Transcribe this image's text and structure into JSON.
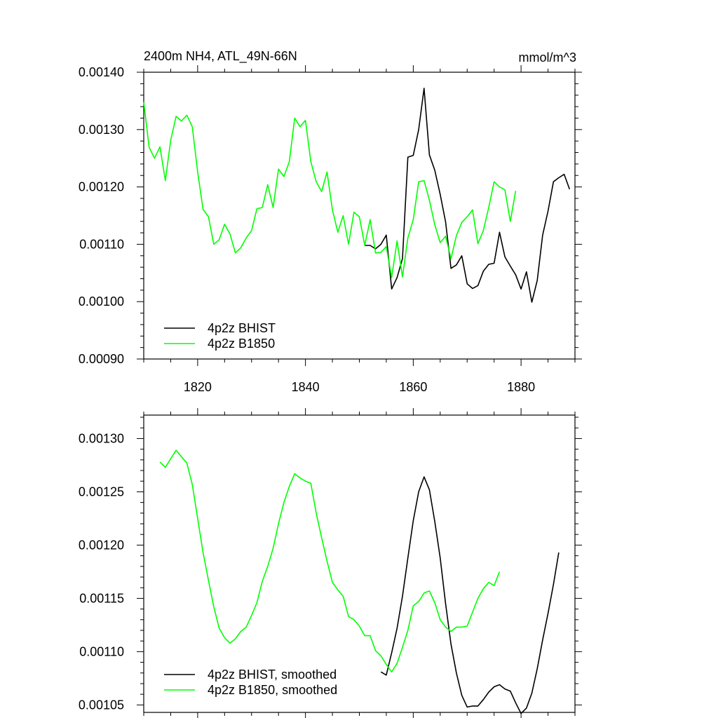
{
  "chart_data": [
    {
      "type": "line",
      "title": "2400m NH4, ATL_49N-66N",
      "units": "mmol/m^3",
      "xlim": [
        1810,
        1890
      ],
      "ylim": [
        0.0009,
        0.0014
      ],
      "xticks": [
        1820,
        1840,
        1860,
        1880
      ],
      "xtick_labels": [
        "1820",
        "1840",
        "1860",
        "1880"
      ],
      "yticks": [
        0.0009,
        0.001,
        0.0011,
        0.0012,
        0.0013,
        0.0014
      ],
      "ytick_labels": [
        "0.00090",
        "0.00100",
        "0.00110",
        "0.00120",
        "0.00130",
        "0.00140"
      ],
      "legend_position": "bottom-left",
      "grid": false,
      "series": [
        {
          "name": "4p2z BHIST",
          "color": "#000000",
          "x": [
            1851,
            1852,
            1853,
            1854,
            1855,
            1856,
            1857,
            1858,
            1859,
            1860,
            1861,
            1862,
            1863,
            1864,
            1865,
            1866,
            1867,
            1868,
            1869,
            1870,
            1871,
            1872,
            1873,
            1874,
            1875,
            1876,
            1877,
            1878,
            1879,
            1880,
            1881,
            1882,
            1883,
            1884,
            1885,
            1886,
            1887,
            1888,
            1889
          ],
          "y": [
            0.001098,
            0.001098,
            0.001092,
            0.0011,
            0.001116,
            0.001022,
            0.001042,
            0.001075,
            0.001252,
            0.001255,
            0.0013,
            0.001372,
            0.001256,
            0.001229,
            0.001187,
            0.001139,
            0.001058,
            0.001064,
            0.00108,
            0.001031,
            0.001023,
            0.001028,
            0.001053,
            0.001065,
            0.001067,
            0.001121,
            0.001078,
            0.001062,
            0.001047,
            0.001022,
            0.001052,
            0.000999,
            0.001037,
            0.001116,
            0.001158,
            0.001209,
            0.001216,
            0.001222,
            0.001196
          ]
        },
        {
          "name": "4p2z B1850",
          "color": "#00ff00",
          "x": [
            1810,
            1811,
            1812,
            1813,
            1814,
            1815,
            1816,
            1817,
            1818,
            1819,
            1820,
            1821,
            1822,
            1823,
            1824,
            1825,
            1826,
            1827,
            1828,
            1829,
            1830,
            1831,
            1832,
            1833,
            1834,
            1835,
            1836,
            1837,
            1838,
            1839,
            1840,
            1841,
            1842,
            1843,
            1844,
            1845,
            1846,
            1847,
            1848,
            1849,
            1850,
            1851,
            1852,
            1853,
            1854,
            1855,
            1856,
            1857,
            1858,
            1859,
            1860,
            1861,
            1862,
            1863,
            1864,
            1865,
            1866,
            1867,
            1868,
            1869,
            1870,
            1871,
            1872,
            1873,
            1874,
            1875,
            1876,
            1877,
            1878,
            1879
          ],
          "y": [
            0.001348,
            0.001269,
            0.00125,
            0.00127,
            0.001211,
            0.001281,
            0.001323,
            0.001315,
            0.001325,
            0.001305,
            0.001226,
            0.001161,
            0.001148,
            0.0011,
            0.001108,
            0.001135,
            0.001118,
            0.001085,
            0.001094,
            0.001111,
            0.001124,
            0.001162,
            0.001164,
            0.001204,
            0.001164,
            0.001231,
            0.001218,
            0.001244,
            0.00132,
            0.001305,
            0.001316,
            0.001244,
            0.001209,
            0.001192,
            0.001226,
            0.00116,
            0.001121,
            0.00115,
            0.0011,
            0.001156,
            0.001148,
            0.001098,
            0.001143,
            0.001085,
            0.001086,
            0.001096,
            0.001042,
            0.001106,
            0.001043,
            0.001111,
            0.001143,
            0.001209,
            0.001211,
            0.001177,
            0.001134,
            0.001103,
            0.001114,
            0.001075,
            0.001115,
            0.001138,
            0.001148,
            0.00116,
            0.001101,
            0.001124,
            0.001164,
            0.001209,
            0.0012,
            0.001195,
            0.00114,
            0.001193
          ]
        }
      ]
    },
    {
      "type": "line",
      "xlim": [
        1810,
        1890
      ],
      "ylim": [
        0.001043,
        0.001322
      ],
      "xticks": [
        1820,
        1840,
        1860,
        1880
      ],
      "yticks": [
        0.00105,
        0.0011,
        0.00115,
        0.0012,
        0.00125,
        0.0013
      ],
      "ytick_labels": [
        "0.00105",
        "0.00110",
        "0.00115",
        "0.00120",
        "0.00125",
        "0.00130"
      ],
      "legend_position": "bottom-left",
      "grid": false,
      "series": [
        {
          "name": "4p2z BHIST, smoothed",
          "color": "#000000",
          "x": [
            1854,
            1855,
            1856,
            1857,
            1858,
            1859,
            1860,
            1861,
            1862,
            1863,
            1864,
            1865,
            1866,
            1867,
            1868,
            1869,
            1870,
            1871,
            1872,
            1873,
            1874,
            1875,
            1876,
            1877,
            1878,
            1879,
            1880,
            1881,
            1882,
            1883,
            1884,
            1885,
            1886,
            1887
          ],
          "y": [
            0.001081,
            0.001078,
            0.001099,
            0.001122,
            0.001152,
            0.001188,
            0.001223,
            0.00125,
            0.001264,
            0.001252,
            0.001222,
            0.001188,
            0.001145,
            0.001107,
            0.00108,
            0.001059,
            0.001048,
            0.001049,
            0.001049,
            0.001055,
            0.001062,
            0.001067,
            0.001069,
            0.001065,
            0.001063,
            0.001052,
            0.001042,
            0.001047,
            0.001061,
            0.001084,
            0.001111,
            0.001136,
            0.001163,
            0.001193
          ]
        },
        {
          "name": "4p2z B1850, smoothed",
          "color": "#00ff00",
          "x": [
            1813,
            1814,
            1815,
            1816,
            1817,
            1818,
            1819,
            1820,
            1821,
            1822,
            1823,
            1824,
            1825,
            1826,
            1827,
            1828,
            1829,
            1830,
            1831,
            1832,
            1833,
            1834,
            1835,
            1836,
            1837,
            1838,
            1839,
            1840,
            1841,
            1842,
            1843,
            1844,
            1845,
            1846,
            1847,
            1848,
            1849,
            1850,
            1851,
            1852,
            1853,
            1854,
            1855,
            1856,
            1857,
            1858,
            1859,
            1860,
            1861,
            1862,
            1863,
            1864,
            1865,
            1866,
            1867,
            1868,
            1869,
            1870,
            1871,
            1872,
            1873,
            1874,
            1875,
            1876
          ],
          "y": [
            0.001278,
            0.001273,
            0.001281,
            0.001289,
            0.001283,
            0.001277,
            0.001257,
            0.001225,
            0.001193,
            0.001167,
            0.001142,
            0.001122,
            0.001113,
            0.001108,
            0.001112,
            0.001119,
            0.001123,
            0.001134,
            0.001146,
            0.001166,
            0.00118,
            0.001197,
            0.00122,
            0.00124,
            0.001255,
            0.001267,
            0.001263,
            0.00126,
            0.001258,
            0.00123,
            0.001207,
            0.001185,
            0.001165,
            0.001158,
            0.001152,
            0.001133,
            0.00113,
            0.001124,
            0.001115,
            0.001115,
            0.001101,
            0.001096,
            0.001088,
            0.001081,
            0.001089,
            0.001104,
            0.00112,
            0.001143,
            0.001147,
            0.001155,
            0.001157,
            0.001146,
            0.00113,
            0.001123,
            0.001119,
            0.001123,
            0.001123,
            0.001124,
            0.001137,
            0.00115,
            0.001159,
            0.001165,
            0.001162,
            0.001175
          ]
        }
      ]
    }
  ]
}
